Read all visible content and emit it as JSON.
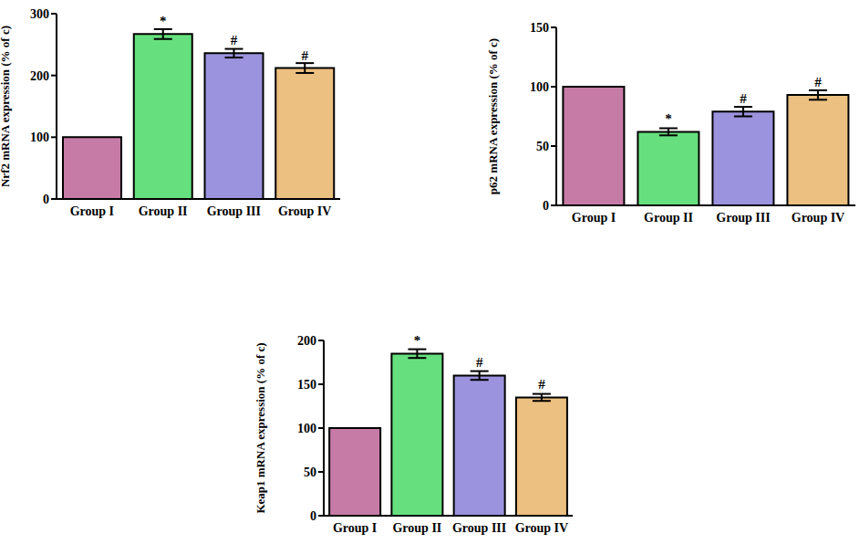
{
  "chart_data": [
    {
      "type": "bar",
      "y_label": "Nrf2 mRNA expression (% of c)",
      "categories": [
        "Group I",
        "Group II",
        "Group III",
        "Group IV"
      ],
      "values": [
        100,
        267,
        236,
        212
      ],
      "errors": [
        0,
        8,
        7,
        8
      ],
      "annotations": [
        null,
        "*",
        "#",
        "#"
      ],
      "colors": [
        "#c67ba6",
        "#66e07e",
        "#9b93dd",
        "#ecc080"
      ],
      "ylim": [
        0,
        300
      ],
      "yticks": [
        0,
        100,
        200,
        300
      ],
      "grid": false
    },
    {
      "type": "bar",
      "y_label": "p62 mRNA expression (% of c)",
      "categories": [
        "Group I",
        "Group II",
        "Group III",
        "Group IV"
      ],
      "values": [
        100,
        62,
        79,
        93
      ],
      "errors": [
        0,
        3,
        4,
        4
      ],
      "annotations": [
        null,
        "*",
        "#",
        "#"
      ],
      "colors": [
        "#c67ba6",
        "#66e07e",
        "#9b93dd",
        "#ecc080"
      ],
      "ylim": [
        0,
        150
      ],
      "yticks": [
        0,
        50,
        100,
        150
      ],
      "grid": false
    },
    {
      "type": "bar",
      "y_label": "Keap1 mRNA expression (% of c)",
      "categories": [
        "Group I",
        "Group II",
        "Group III",
        "Group IV"
      ],
      "values": [
        100,
        185,
        160,
        135
      ],
      "errors": [
        0,
        5,
        5,
        4
      ],
      "annotations": [
        null,
        "*",
        "#",
        "#"
      ],
      "colors": [
        "#c67ba6",
        "#66e07e",
        "#9b93dd",
        "#ecc080"
      ],
      "ylim": [
        0,
        200
      ],
      "yticks": [
        0,
        50,
        100,
        150,
        200
      ],
      "grid": false
    }
  ]
}
